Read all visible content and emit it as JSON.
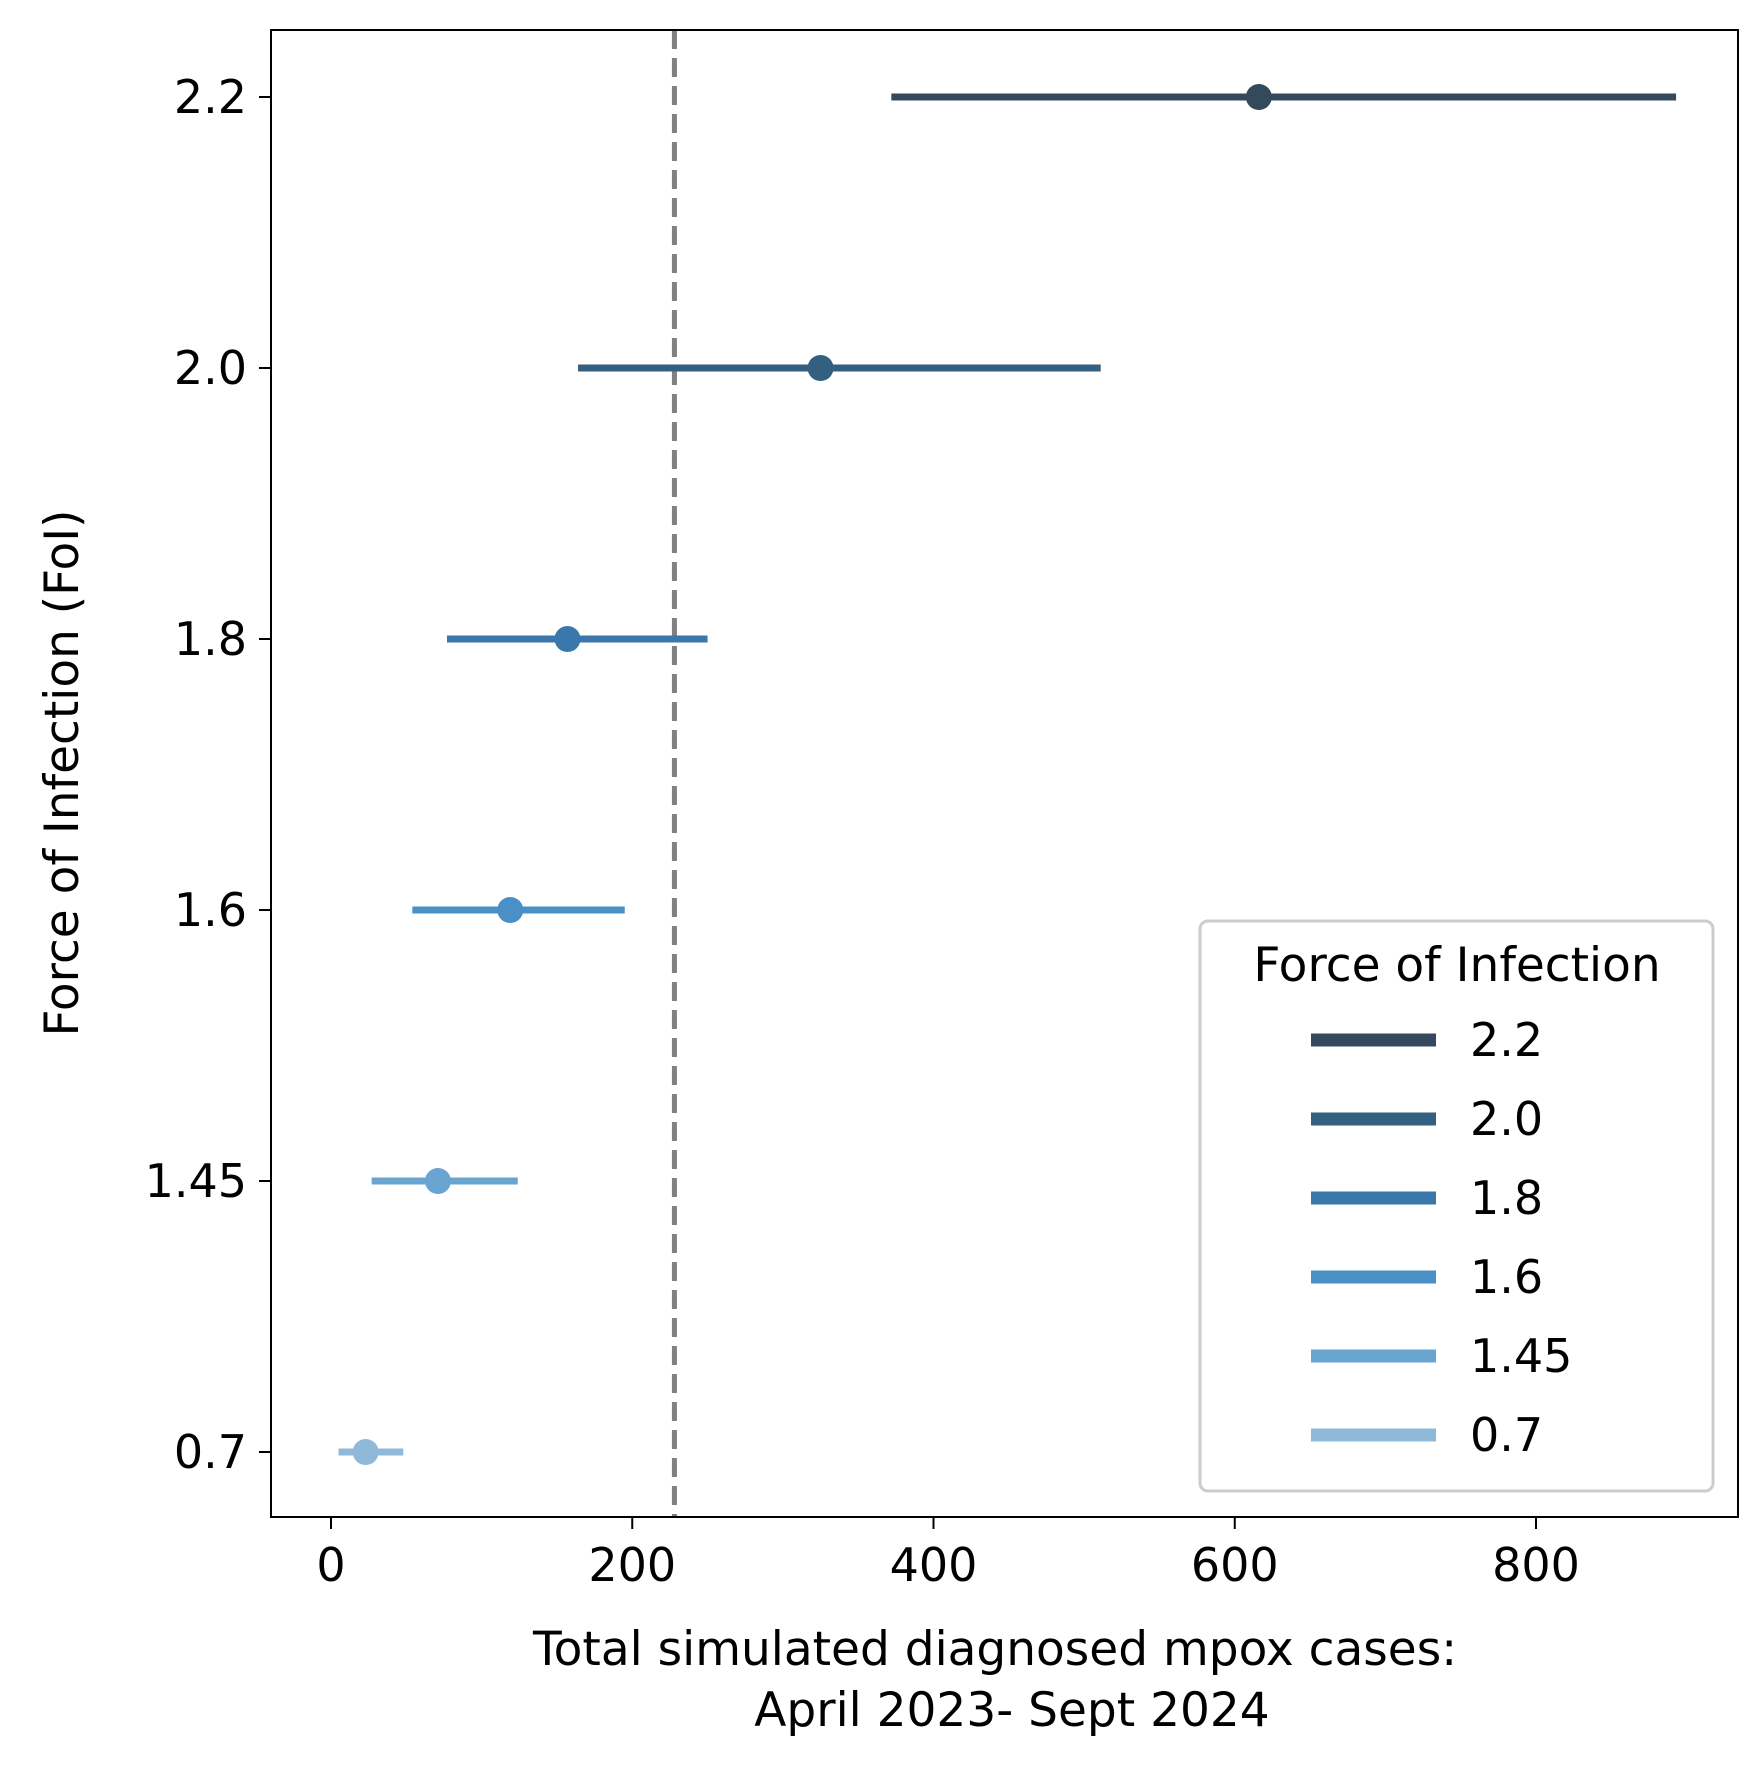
{
  "chart_data": {
    "type": "errorbar",
    "title": "",
    "xlabel_lines": [
      "Total simulated diagnosed mpox cases:",
      "April 2023- Sept 2024"
    ],
    "ylabel": "Force of Infection (FoI)",
    "xlim": [
      -40,
      935
    ],
    "xticks": [
      0,
      200,
      400,
      600,
      800
    ],
    "xtick_labels": [
      "0",
      "200",
      "400",
      "600",
      "800"
    ],
    "categories": [
      "0.7",
      "1.45",
      "1.6",
      "1.8",
      "2.0",
      "2.2"
    ],
    "reference_line": {
      "x": 228,
      "style": "dashed",
      "color": "#808080"
    },
    "series": [
      {
        "category": "0.7",
        "median": 23,
        "lower": 5,
        "upper": 48,
        "color": "#8fb9d9"
      },
      {
        "category": "1.45",
        "median": 71,
        "lower": 27,
        "upper": 124,
        "color": "#6aa5d1"
      },
      {
        "category": "1.6",
        "median": 119,
        "lower": 54,
        "upper": 195,
        "color": "#4a8fc5"
      },
      {
        "category": "1.8",
        "median": 157,
        "lower": 77,
        "upper": 250,
        "color": "#3a78ac"
      },
      {
        "category": "2.0",
        "median": 325,
        "lower": 164,
        "upper": 511,
        "color": "#335f80"
      },
      {
        "category": "2.2",
        "median": 616,
        "lower": 372,
        "upper": 893,
        "color": "#344a5c"
      }
    ],
    "legend": {
      "title": "Force of Infection",
      "placement": "lower-right",
      "entries": [
        "2.2",
        "2.0",
        "1.8",
        "1.6",
        "1.45",
        "0.7"
      ]
    }
  }
}
